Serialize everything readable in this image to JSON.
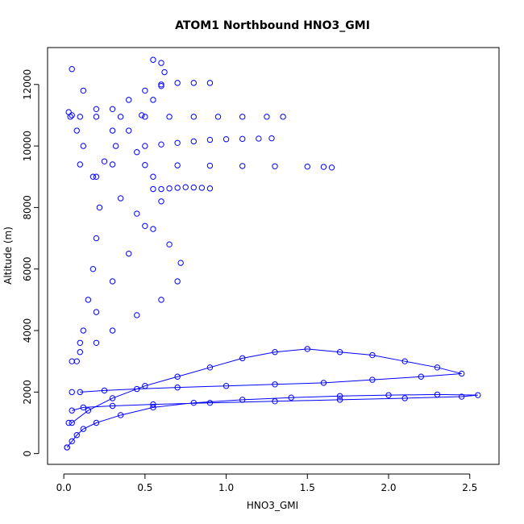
{
  "chart_data": {
    "type": "scatter",
    "title": "ATOM1 Northbound HNO3_GMI",
    "xlabel": "HNO3_GMI",
    "ylabel": "Altitude (m)",
    "xlim": [
      -0.1,
      2.68
    ],
    "ylim": [
      -350,
      13200
    ],
    "x_ticks": [
      0.0,
      0.5,
      1.0,
      1.5,
      2.0,
      2.5
    ],
    "x_tick_labels": [
      "0.0",
      "0.5",
      "1.0",
      "1.5",
      "2.0",
      "2.5"
    ],
    "y_ticks": [
      0,
      2000,
      4000,
      6000,
      8000,
      10000,
      12000
    ],
    "y_tick_labels": [
      "0",
      "2000",
      "4000",
      "6000",
      "8000",
      "10000",
      "12000"
    ],
    "grid": false,
    "marker": "open-circle",
    "color": "#0000ff",
    "series": [
      {
        "style": "points-lines",
        "x": [
          0.02,
          0.05,
          0.08,
          0.12,
          0.2,
          0.35,
          0.55,
          0.8,
          1.1,
          1.4,
          1.7,
          2.0,
          2.3,
          2.55,
          2.45,
          2.1,
          1.7,
          1.3,
          0.9,
          0.55,
          0.3,
          0.12,
          0.05
        ],
        "y": [
          200,
          400,
          600,
          800,
          1000,
          1250,
          1500,
          1650,
          1750,
          1820,
          1870,
          1900,
          1920,
          1900,
          1850,
          1800,
          1750,
          1700,
          1650,
          1600,
          1550,
          1500,
          1400
        ]
      },
      {
        "style": "points-lines",
        "x": [
          0.05,
          0.15,
          0.3,
          0.5,
          0.7,
          0.9,
          1.1,
          1.3,
          1.5,
          1.7,
          1.9,
          2.1,
          2.3,
          2.45,
          2.2,
          1.9,
          1.6,
          1.3,
          1.0,
          0.7,
          0.45,
          0.25,
          0.1
        ],
        "y": [
          1000,
          1400,
          1800,
          2200,
          2500,
          2800,
          3100,
          3300,
          3400,
          3300,
          3200,
          3000,
          2800,
          2600,
          2500,
          2400,
          2300,
          2250,
          2200,
          2150,
          2100,
          2050,
          2000
        ]
      },
      {
        "style": "points",
        "x": [
          0.04,
          0.1,
          0.2,
          0.35,
          0.5,
          0.65,
          0.8,
          0.95,
          1.1,
          1.25,
          1.35
        ],
        "y": [
          10950,
          10950,
          10950,
          10950,
          10950,
          10950,
          10950,
          10950,
          10950,
          10950,
          10950
        ]
      },
      {
        "style": "points",
        "x": [
          0.1,
          0.3,
          0.5,
          0.7,
          0.9,
          1.1,
          1.3,
          1.5,
          1.6,
          1.65
        ],
        "y": [
          9400,
          9400,
          9380,
          9370,
          9360,
          9350,
          9340,
          9330,
          9320,
          9300
        ]
      },
      {
        "style": "points",
        "x": [
          0.5,
          0.6,
          0.7,
          0.8,
          0.9,
          1.0,
          1.1,
          1.2,
          1.28
        ],
        "y": [
          10000,
          10050,
          10100,
          10150,
          10200,
          10220,
          10230,
          10240,
          10250
        ]
      },
      {
        "style": "points",
        "x": [
          0.3,
          0.4,
          0.5,
          0.6,
          0.7,
          0.8,
          0.9
        ],
        "y": [
          11200,
          11500,
          11800,
          11950,
          12050,
          12050,
          12050
        ]
      },
      {
        "style": "points",
        "x": [
          0.55,
          0.6,
          0.65,
          0.7,
          0.75,
          0.8,
          0.85,
          0.9
        ],
        "y": [
          8600,
          8600,
          8620,
          8640,
          8660,
          8650,
          8640,
          8620
        ]
      },
      {
        "style": "points",
        "x": [
          0.05,
          0.12,
          0.2,
          0.3,
          0.45,
          0.55,
          0.6,
          0.5,
          0.4,
          0.3,
          0.2,
          0.1
        ],
        "y": [
          12500,
          11800,
          11200,
          10500,
          9800,
          9000,
          8200,
          7400,
          6500,
          5600,
          4600,
          3600
        ]
      },
      {
        "style": "points",
        "x": [
          0.55,
          0.6,
          0.62,
          0.6,
          0.55,
          0.48,
          0.4,
          0.32,
          0.25,
          0.2
        ],
        "y": [
          12800,
          12700,
          12400,
          12000,
          11500,
          11000,
          10500,
          10000,
          9500,
          9000
        ]
      },
      {
        "style": "points",
        "x": [
          0.05,
          0.1,
          0.2,
          0.3,
          0.45,
          0.6,
          0.7,
          0.72,
          0.65,
          0.55,
          0.45,
          0.35
        ],
        "y": [
          3000,
          3300,
          3600,
          4000,
          4500,
          5000,
          5600,
          6200,
          6800,
          7300,
          7800,
          8300
        ]
      },
      {
        "style": "points",
        "x": [
          0.02,
          0.03,
          0.05,
          0.08,
          0.12,
          0.15,
          0.18,
          0.2,
          0.22,
          0.18,
          0.12,
          0.08,
          0.05,
          0.03
        ],
        "y": [
          200,
          1000,
          2000,
          3000,
          4000,
          5000,
          6000,
          7000,
          8000,
          9000,
          10000,
          10500,
          11000,
          11100
        ]
      }
    ]
  }
}
